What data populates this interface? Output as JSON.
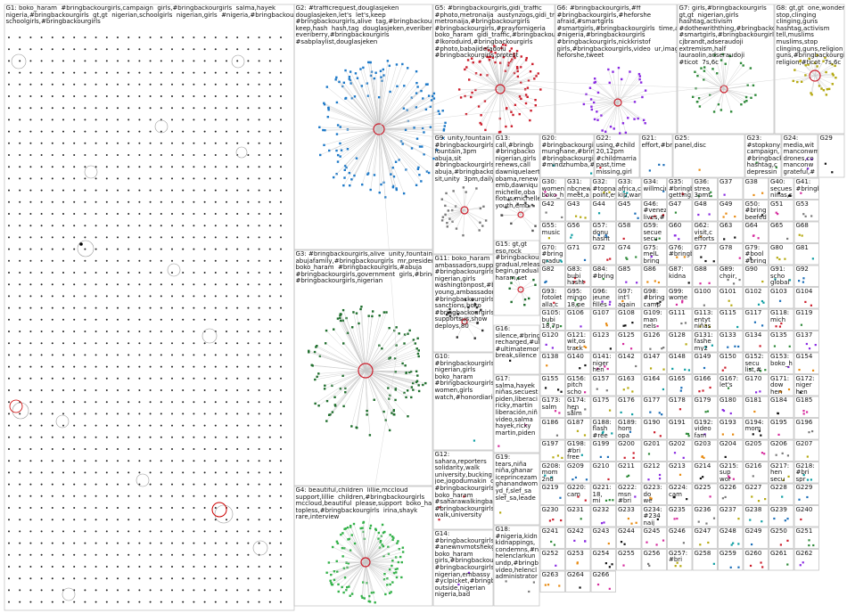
{
  "boxes": [
    {
      "id": "G1",
      "text": "G1: boko_haram  #bringbackourgirls,campaign  girls,#bringbackourgirls  salma,hayek\nnigeria,#bringbackourgirls  gt,gt  nigerian,schoolgirls  nigerian,girls  #nigeria,#bringbackourgirls\nschoolgirls,#bringbackourgirls"
    },
    {
      "id": "G2",
      "text": "G2: #trafficrequest,douglasjeken\ndouglasjeken,let's  let's,keep\n#bringbackourgirls,alive  tag,#bringbackourgirls\nkeep,hash  hash,tag  douglasjeken,everiberry\neveriberry,#bringbackourgirls\n#sabplaylist,douglasjeken"
    },
    {
      "id": "G3",
      "text": "G3: #bringbackourgirls,alive  unity,fountain\nabujafamily,#bringbackourgirls  mr,president\nboko_haram  #bringbackourgirls,#abuja\n#bringbackourgirls,government  girls,#bringbackourgirls\n#bringbackourgirls,nigerian"
    },
    {
      "id": "G4",
      "text": "G4: beautiful,children  lillie,mccloud\nsupport,lillie  children,#bringbackourgirls\nmccloud,beautiful  please,support  boko_haram\ntopless,#bringbackourgirls  irina,shayk\nrare,interview"
    },
    {
      "id": "G5",
      "text": "G5: #bringbackourgirls,gidi_traffic\n#photo,metronaija  austynzogs,gidi_traffic\nmetronaija,#bringbackourgirls\n#bringbackourgirls,#prayfornigeria\nboko_haram  gidi_traffic,#bringbackourgirls\n#lkoroduird,#bringbackourgirls\n#photo,babajidefadolu\n#bringbackourgirls,protest"
    },
    {
      "id": "G6",
      "text": "G6: #bringbackourgirls,#ff\n#bringbackourgirls,#heforshe\nafraid,#smartgirls\n#smartgirls,#bringbackourgirls  time,act\n#nigeria,#bringbackourgirls\n#bringbackourgirls,nickkristof\ngirls,#bringbackourgirls,video  ur,image\nheforshe,tweet"
    },
    {
      "id": "G7",
      "text": "G7: girls,#bringbackourgirls\ngt,gt  nigerian,girls\nhashtag,activism\n#dothewriththing,#bringbackour\n#smartgirls,#bringbackourgirls\ncjbrandt,adseraudoji\nextremism,half\nlauraolin,adseraudoji\n#ticot  7s,6c"
    },
    {
      "id": "G8",
      "text": "G8: gt,gt  one,wonderful\nstop,clinging\nclinging,guns\nhashtag,activism\ntell,muslims\nmuslims,stop\nclinging,guns,religion\nguns,#bringbackourgirls,nig\nreligion,#ticot  7s,6c"
    },
    {
      "id": "G9",
      "text": "G9: unity,fountain\n#bringbackourgirls\nfountain,3pm\nabuja,sit\n#bringbackourgirls\nabuja,#bringbackourgirls\nsit,unity  3pm,daily"
    },
    {
      "id": "G10",
      "text": "G10:\n#bringbackourgirls\nnigerian,girls\nboko_haram\n#bringbackourgirls\nwomen,girls\nwatch,#honordiaries"
    },
    {
      "id": "G11",
      "text": "G11: boko_haram\nambassadors,supp\n#bringbackourgirls\nnigerian,girls\nwashingtonpost,#b\nyoung,ambassadors\n#bringbackourgirls\nsanctions,boko\n#bringbackourgirls\nsupportsus,show\ndeploys,80"
    },
    {
      "id": "G12",
      "text": "G12:\nsahara,reporters\nsolidarity,walk\nuniversity,bucking\njoe,jogodumakin  dr,joe\n#bringbackourgirls\nboko_haram\n#saharawalkingback\n#bringbackourgirls\nwalk,university"
    },
    {
      "id": "G13",
      "text": "G13:\ncall,#bringb\n#bringbacko\nnigerian,girls\nrenews,call\ndawniquelaerts\nobama,renew\nemb,dawniqu\nmichelle,oba\nflotus,michelle\nyouth,emb"
    },
    {
      "id": "G14",
      "text": "G14:\n#bringbackourgirls\n#anewnvmotshekga\nboko_haram\ngirls,#bringbackou\n#bringbackourgirls\nnigerian,embassy\n#yclpicket,#bringb\noutside,nigerian\nnigeria,bad"
    },
    {
      "id": "G15",
      "text": "G15: gt,gt\neso,rock\n#bringbackourgirls\ngradual,release\nbegin,gradual\nharam,set"
    },
    {
      "id": "G16",
      "text": "G16:\nsilence,#bring\nrecharged,#ul\n#ultimatemor\nbreak,silence"
    },
    {
      "id": "G17",
      "text": "G17:\nsalma,hayek\nniñas,secuest\npiden,liberaci\nricky,martin\nliberación,niñ\nvideo,salma\nhayek,ricky\nmartin,piden"
    },
    {
      "id": "G18",
      "text": "G18:\n#nigeria,kidn\nkidnappings,\ncondemns,#n\nhelenclarkun\nundp,#bringb\nvideo,helencl\nadministrator"
    },
    {
      "id": "G19",
      "text": "G19:\ntears,niña\nniña,ghanar\niceprincezam\nghanandwom\nyd_f,slef_sa\nslef_sa,leade"
    },
    {
      "id": "G20",
      "text": "G20:\n#bringbackourgirl\nmunghane,#brin\n#bringbackourgirl\n#mindzhumba,#b"
    },
    {
      "id": "G21",
      "text": "G21:\neffort,#bring"
    },
    {
      "id": "G22",
      "text": "G22:\nusing,#child\n20,12pm\n#childmarria\npast,time\nmissing,girl"
    },
    {
      "id": "G23",
      "text": "G23:\n#stopkony,\ncampaign,\n#bringback\nhashtag,c\ndepressin"
    },
    {
      "id": "G24",
      "text": "G24:\nmedia,wit\nmanconwm\ndrones,co\nmanconw\ngrateful,#"
    },
    {
      "id": "G25",
      "text": "G25:\npanel,disc"
    },
    {
      "id": "G29",
      "text": "G29"
    },
    {
      "id": "G30",
      "text": "G30:\nwomen'\nboko_h\n#bring"
    },
    {
      "id": "G31",
      "text": "G31:\nnbcnew\nmeet,a\nsalma\nhayek,s"
    },
    {
      "id": "G32",
      "text": "G32:\n#topnajj\npoint,ey\nenjoy,#\neyes,ma"
    },
    {
      "id": "G33",
      "text": "G33:\nafrica,co\nkip,ward"
    },
    {
      "id": "G34",
      "text": "G34:\nwillmcin"
    },
    {
      "id": "G35",
      "text": "G35:\n#bringb\ngetting,\nmoveme\nstudents"
    },
    {
      "id": "G36",
      "text": "G36:\nstrea\n3pmt\nnews,\nG94"
    },
    {
      "id": "G37",
      "text": "G37"
    },
    {
      "id": "G38",
      "text": "G38"
    },
    {
      "id": "G40",
      "text": "G40:\nsecues\nniñas,s\nnigeria"
    },
    {
      "id": "G41",
      "text": "G41:\n#bringb"
    },
    {
      "id": "G42",
      "text": "G42"
    },
    {
      "id": "G43",
      "text": "G43"
    },
    {
      "id": "G44",
      "text": "G44"
    },
    {
      "id": "G45",
      "text": "G45"
    },
    {
      "id": "G46",
      "text": "G46:\n#venez\nlives,#\nnigeria"
    },
    {
      "id": "G47",
      "text": "G47"
    },
    {
      "id": "G48",
      "text": "G48"
    },
    {
      "id": "G49",
      "text": "G49"
    },
    {
      "id": "G50",
      "text": "G50:\n#bring\nbeefed\npreside"
    },
    {
      "id": "G51",
      "text": "G51"
    },
    {
      "id": "G53",
      "text": "G53"
    },
    {
      "id": "G55",
      "text": "G55:\nmusic"
    },
    {
      "id": "G56",
      "text": "G56"
    },
    {
      "id": "G57",
      "text": "G57:\ndonu\nhasht\n#bring"
    },
    {
      "id": "G58",
      "text": "G58"
    },
    {
      "id": "G59",
      "text": "G59:\nsecue\nsecu\nG94"
    },
    {
      "id": "G60",
      "text": "G60"
    },
    {
      "id": "G62",
      "text": "G62:\nvisit,c\nefforts\nperent"
    },
    {
      "id": "G63",
      "text": "G63"
    },
    {
      "id": "G64",
      "text": "G64"
    },
    {
      "id": "G65",
      "text": "G65"
    },
    {
      "id": "G68",
      "text": "G68"
    },
    {
      "id": "G70",
      "text": "G70:\n#bring\ngradu\nunem"
    },
    {
      "id": "G71",
      "text": "G71"
    },
    {
      "id": "G72",
      "text": "G72"
    },
    {
      "id": "G74",
      "text": "G74"
    },
    {
      "id": "G75",
      "text": "G75:\nmelL\nbring\n#bring"
    },
    {
      "id": "G76",
      "text": "G76:\n#bringb"
    },
    {
      "id": "G77",
      "text": "G77"
    },
    {
      "id": "G78",
      "text": "G78"
    },
    {
      "id": "G79",
      "text": "G79:\n#bool\n#bring\n#them"
    },
    {
      "id": "G80",
      "text": "G80"
    },
    {
      "id": "G81",
      "text": "G81"
    },
    {
      "id": "G82",
      "text": "G82"
    },
    {
      "id": "G83",
      "text": "G83:\nbubi\nhasht\n#bring"
    },
    {
      "id": "G84",
      "text": "G84:\n#bring"
    },
    {
      "id": "G85",
      "text": "G85"
    },
    {
      "id": "G86",
      "text": "G86"
    },
    {
      "id": "G87",
      "text": "G87:\nkidna"
    },
    {
      "id": "G88",
      "text": "G88"
    },
    {
      "id": "G89",
      "text": "G89:\nchoir,"
    },
    {
      "id": "G90",
      "text": "G90"
    },
    {
      "id": "G91",
      "text": "G91:\nscho\nglobal"
    },
    {
      "id": "G92",
      "text": "G92"
    },
    {
      "id": "G93",
      "text": "G93:\nfotolet\nalla,c\n#bring"
    },
    {
      "id": "G95",
      "text": "G95:\nmingo\n18,pe\nbring"
    },
    {
      "id": "G96",
      "text": "G96:\njeune\nfilles\njour,lu"
    },
    {
      "id": "G97",
      "text": "G97:\nint'l\nagain"
    },
    {
      "id": "G98",
      "text": "G98:\n#bring\ncamp"
    },
    {
      "id": "G99",
      "text": "G99:\nwome"
    },
    {
      "id": "G100",
      "text": "G100"
    },
    {
      "id": "G101",
      "text": "G101"
    },
    {
      "id": "G102",
      "text": "G102"
    },
    {
      "id": "G103",
      "text": "G103"
    },
    {
      "id": "G104",
      "text": "G104"
    },
    {
      "id": "G105",
      "text": "G105:\nbubi\n18,7p\npowe"
    },
    {
      "id": "G106",
      "text": "G106"
    },
    {
      "id": "G107",
      "text": "G107"
    },
    {
      "id": "G108",
      "text": "G108"
    },
    {
      "id": "G109",
      "text": "G109:\nman\nnels"
    },
    {
      "id": "G111",
      "text": "G111"
    },
    {
      "id": "G113",
      "text": "G113:\nentyt\nniñas"
    },
    {
      "id": "G115",
      "text": "G115"
    },
    {
      "id": "G117",
      "text": "G117"
    },
    {
      "id": "G118",
      "text": "G118:\nmich"
    },
    {
      "id": "G119",
      "text": "G119"
    },
    {
      "id": "G120",
      "text": "G120"
    },
    {
      "id": "G121",
      "text": "G121:\nwit,os\ntrack"
    },
    {
      "id": "G123",
      "text": "G123"
    },
    {
      "id": "G125",
      "text": "G125"
    },
    {
      "id": "G126",
      "text": "G126"
    },
    {
      "id": "G128",
      "text": "G128"
    },
    {
      "id": "G131",
      "text": "G131:\nfashe\nmy2"
    },
    {
      "id": "G133",
      "text": "G133"
    },
    {
      "id": "G134",
      "text": "G134"
    },
    {
      "id": "G135",
      "text": "G135"
    },
    {
      "id": "G137",
      "text": "G137"
    },
    {
      "id": "G138",
      "text": "G138"
    },
    {
      "id": "G140",
      "text": "G140"
    },
    {
      "id": "G141",
      "text": "G141:\nniger\nhen"
    },
    {
      "id": "G142",
      "text": "G142"
    },
    {
      "id": "G147",
      "text": "G147"
    },
    {
      "id": "G148",
      "text": "G148"
    },
    {
      "id": "G149",
      "text": "G149"
    },
    {
      "id": "G150",
      "text": "G150"
    },
    {
      "id": "G152",
      "text": "G152:\nsecu\nlist,#"
    },
    {
      "id": "G153",
      "text": "G153:\nboko_h"
    },
    {
      "id": "G154",
      "text": "G154"
    },
    {
      "id": "G155",
      "text": "G155"
    },
    {
      "id": "G156",
      "text": "G156:\npitch\nscho"
    },
    {
      "id": "G157",
      "text": "G157"
    },
    {
      "id": "G163",
      "text": "G163"
    },
    {
      "id": "G164",
      "text": "G164"
    },
    {
      "id": "G165",
      "text": "G165"
    },
    {
      "id": "G166",
      "text": "G166"
    },
    {
      "id": "G167",
      "text": "G167:\nlet's"
    },
    {
      "id": "G170",
      "text": "G170"
    },
    {
      "id": "G171",
      "text": "G171:\ndow\nhen"
    },
    {
      "id": "G172",
      "text": "G172:\nniger\nhen"
    },
    {
      "id": "G173",
      "text": "G173:\nsalm"
    },
    {
      "id": "G174",
      "text": "G174:\nhen\nsalm"
    },
    {
      "id": "G175",
      "text": "G175"
    },
    {
      "id": "G176",
      "text": "G176"
    },
    {
      "id": "G177",
      "text": "G177"
    },
    {
      "id": "G178",
      "text": "G178"
    },
    {
      "id": "G179",
      "text": "G179"
    },
    {
      "id": "G180",
      "text": "G180"
    },
    {
      "id": "G181",
      "text": "G181"
    },
    {
      "id": "G184",
      "text": "G184"
    },
    {
      "id": "G185",
      "text": "G185"
    },
    {
      "id": "G186",
      "text": "G186"
    },
    {
      "id": "G187",
      "text": "G187"
    },
    {
      "id": "G188",
      "text": "G188:\nflash\n#ree"
    },
    {
      "id": "G189",
      "text": "G189:\nhom\nopa"
    },
    {
      "id": "G190",
      "text": "G190"
    },
    {
      "id": "G191",
      "text": "G191"
    },
    {
      "id": "G192",
      "text": "G192:\nvideo\nfam"
    },
    {
      "id": "G193",
      "text": "G193"
    },
    {
      "id": "G194",
      "text": "G194:\nmom"
    },
    {
      "id": "G195",
      "text": "G195"
    },
    {
      "id": "G196",
      "text": "G196"
    },
    {
      "id": "G197",
      "text": "G197"
    },
    {
      "id": "G198",
      "text": "G198:\n#bri\nfree\n360"
    },
    {
      "id": "G199",
      "text": "G199"
    },
    {
      "id": "G200",
      "text": "G200"
    },
    {
      "id": "G201",
      "text": "G201"
    },
    {
      "id": "G202",
      "text": "G202"
    },
    {
      "id": "G203",
      "text": "G203"
    },
    {
      "id": "G204",
      "text": "G204"
    },
    {
      "id": "G205",
      "text": "G205"
    },
    {
      "id": "G206",
      "text": "G206"
    },
    {
      "id": "G207",
      "text": "G207"
    },
    {
      "id": "G208",
      "text": "G208:\nmom\n2nd"
    },
    {
      "id": "G209",
      "text": "G209"
    },
    {
      "id": "G210",
      "text": "G210"
    },
    {
      "id": "G211",
      "text": "G211"
    },
    {
      "id": "G212",
      "text": "G212"
    },
    {
      "id": "G213",
      "text": "G213"
    },
    {
      "id": "G214",
      "text": "G214"
    },
    {
      "id": "G215",
      "text": "G215:\nsup\nwor"
    },
    {
      "id": "G216",
      "text": "G216"
    },
    {
      "id": "G217",
      "text": "G217:\nhen\nsecu"
    },
    {
      "id": "G218",
      "text": "G218:\n#bri\nspr"
    },
    {
      "id": "G219",
      "text": "G219"
    },
    {
      "id": "G220",
      "text": "G220:\ncam"
    },
    {
      "id": "G221",
      "text": "G221:\n18,\nmi"
    },
    {
      "id": "G222",
      "text": "G222:\nmsn\n#bri"
    },
    {
      "id": "G223",
      "text": "G223:\ndo\nwe"
    },
    {
      "id": "G224",
      "text": "G224:\ncam"
    },
    {
      "id": "G225",
      "text": "G225"
    },
    {
      "id": "G226",
      "text": "G226"
    },
    {
      "id": "G227",
      "text": "G227"
    },
    {
      "id": "G228",
      "text": "G228"
    },
    {
      "id": "G229",
      "text": "G229"
    },
    {
      "id": "G230",
      "text": "G230"
    },
    {
      "id": "G231",
      "text": "G231"
    },
    {
      "id": "G232",
      "text": "G232"
    },
    {
      "id": "G233",
      "text": "G233"
    },
    {
      "id": "G234",
      "text": "G234:\n#234\nnaij"
    },
    {
      "id": "G235",
      "text": "G235"
    },
    {
      "id": "G236",
      "text": "G236"
    },
    {
      "id": "G237",
      "text": "G237"
    },
    {
      "id": "G238",
      "text": "G238"
    },
    {
      "id": "G239",
      "text": "G239"
    },
    {
      "id": "G240",
      "text": "G240"
    },
    {
      "id": "G241",
      "text": "G241"
    },
    {
      "id": "G242",
      "text": "G242"
    },
    {
      "id": "G243",
      "text": "G243"
    },
    {
      "id": "G244",
      "text": "G244"
    },
    {
      "id": "G245",
      "text": "G245"
    },
    {
      "id": "G246",
      "text": "G246"
    },
    {
      "id": "G247",
      "text": "G247"
    },
    {
      "id": "G248",
      "text": "G248"
    },
    {
      "id": "G249",
      "text": "G249"
    },
    {
      "id": "G250",
      "text": "G250"
    },
    {
      "id": "G251",
      "text": "G251"
    },
    {
      "id": "G252",
      "text": "G252"
    },
    {
      "id": "G253",
      "text": "G253"
    },
    {
      "id": "G254",
      "text": "G254"
    },
    {
      "id": "G255",
      "text": "G255"
    },
    {
      "id": "G256",
      "text": "G256"
    },
    {
      "id": "G257",
      "text": "G257:\n#bri"
    },
    {
      "id": "G258",
      "text": "G258"
    },
    {
      "id": "G259",
      "text": "G259"
    },
    {
      "id": "G260",
      "text": "G260"
    },
    {
      "id": "G261",
      "text": "G261"
    },
    {
      "id": "G262",
      "text": "G262"
    },
    {
      "id": "G263",
      "text": "G263"
    },
    {
      "id": "G264",
      "text": "G264"
    },
    {
      "id": "G266",
      "text": "G266"
    }
  ]
}
